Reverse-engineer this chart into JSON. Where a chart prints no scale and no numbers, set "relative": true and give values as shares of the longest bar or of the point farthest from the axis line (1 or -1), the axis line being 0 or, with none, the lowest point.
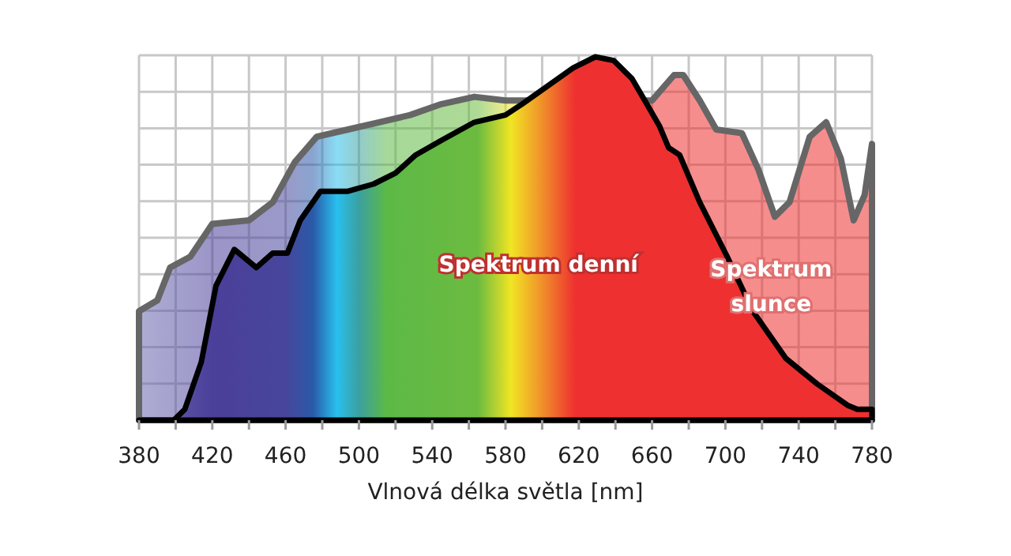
{
  "chart_data": {
    "type": "area",
    "xlabel": "Vlnová délka světla [nm]",
    "relative": true,
    "grid": true,
    "legend": false,
    "xlim": [
      380,
      780
    ],
    "xticks": [
      380,
      {
        "value": 400,
        "label": null
      },
      420,
      {
        "value": 440,
        "label": null
      },
      460,
      {
        "value": 480,
        "label": null
      },
      500,
      {
        "value": 520,
        "label": null
      },
      540,
      {
        "value": 560,
        "label": null
      },
      580,
      {
        "value": 600,
        "label": null
      },
      620,
      {
        "value": 640,
        "label": null
      },
      660,
      {
        "value": 680,
        "label": null
      },
      700,
      {
        "value": 720,
        "label": null
      },
      740,
      {
        "value": 760,
        "label": null
      },
      780
    ],
    "series": [
      {
        "name": "Spektrum denní",
        "color": "#000000",
        "x": [
          380,
          399,
          405,
          414,
          422,
          432,
          444,
          453,
          461,
          468,
          479,
          494,
          508,
          520,
          531,
          545,
          563,
          580,
          589,
          603,
          617,
          629,
          639,
          649,
          656,
          664,
          669,
          675,
          686,
          701,
          715,
          733,
          750,
          767,
          772,
          780
        ],
        "values": [
          0,
          0,
          0.03,
          0.16,
          0.37,
          0.47,
          0.42,
          0.46,
          0.46,
          0.55,
          0.63,
          0.63,
          0.65,
          0.68,
          0.73,
          0.77,
          0.82,
          0.84,
          0.87,
          0.92,
          0.97,
          1,
          0.99,
          0.94,
          0.88,
          0.81,
          0.75,
          0.73,
          0.6,
          0.45,
          0.3,
          0.17,
          0.1,
          0.04,
          0.03,
          0.03
        ]
      },
      {
        "name": "Spektrum slunce",
        "color": "#666666",
        "x": [
          380,
          390,
          397,
          408,
          420,
          440,
          453,
          465,
          477,
          494,
          511,
          528,
          545,
          563,
          580,
          660,
          672,
          677,
          686,
          695,
          709,
          718,
          727,
          735,
          746,
          755,
          763,
          770,
          776,
          780
        ],
        "values": [
          0.3,
          0.33,
          0.42,
          0.45,
          0.54,
          0.55,
          0.6,
          0.71,
          0.78,
          0.8,
          0.82,
          0.84,
          0.87,
          0.89,
          0.88,
          0.88,
          0.95,
          0.95,
          0.88,
          0.8,
          0.79,
          0.69,
          0.56,
          0.6,
          0.78,
          0.82,
          0.72,
          0.55,
          0.62,
          0.76
        ]
      }
    ]
  }
}
